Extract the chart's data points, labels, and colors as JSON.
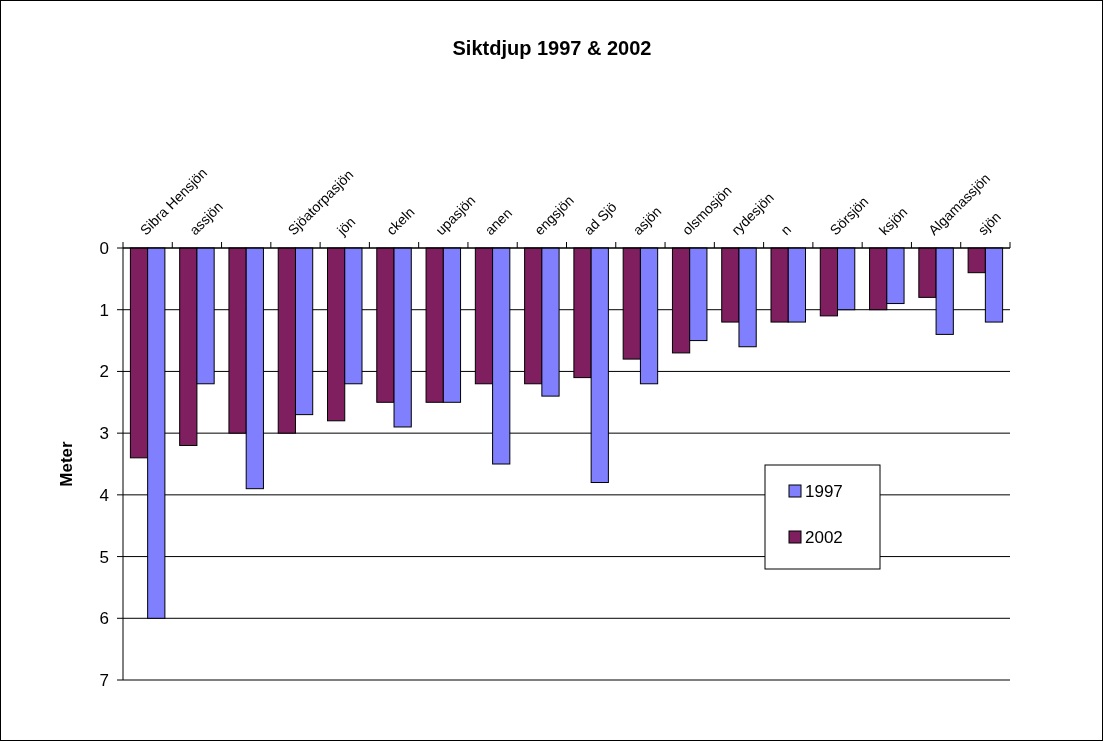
{
  "chart_data": {
    "type": "bar",
    "title": "Siktdjup 1997 & 2002",
    "ylabel": "Meter",
    "categories": [
      "Sibra Hensjön",
      "assjön",
      null,
      "Sjöatorpasjön",
      "jön",
      "ckeln",
      "upasjön",
      "anen",
      "engsjön",
      "ad Sjö",
      "asjön",
      "olsmosjön",
      "rydesjön",
      "n",
      "Sörsjön",
      "ksjön",
      "Algamassjön",
      "sjön"
    ],
    "series": [
      {
        "name": "2002",
        "color": "#7f1f5f",
        "values": [
          3.4,
          3.2,
          3.0,
          3.0,
          2.8,
          2.5,
          2.5,
          2.2,
          2.2,
          2.1,
          1.8,
          1.7,
          1.2,
          1.2,
          1.1,
          1.0,
          0.8,
          0.4
        ]
      },
      {
        "name": "1997",
        "color": "#8080ff",
        "values": [
          6.0,
          2.2,
          3.9,
          2.7,
          2.2,
          2.9,
          2.5,
          3.5,
          2.4,
          3.8,
          2.2,
          1.5,
          1.6,
          1.2,
          1.0,
          0.9,
          1.4,
          1.2
        ]
      }
    ],
    "ylim": [
      7,
      0
    ],
    "yticks": [
      0,
      1,
      2,
      3,
      4,
      5,
      6,
      7
    ],
    "grid": "y",
    "legend": "right"
  }
}
